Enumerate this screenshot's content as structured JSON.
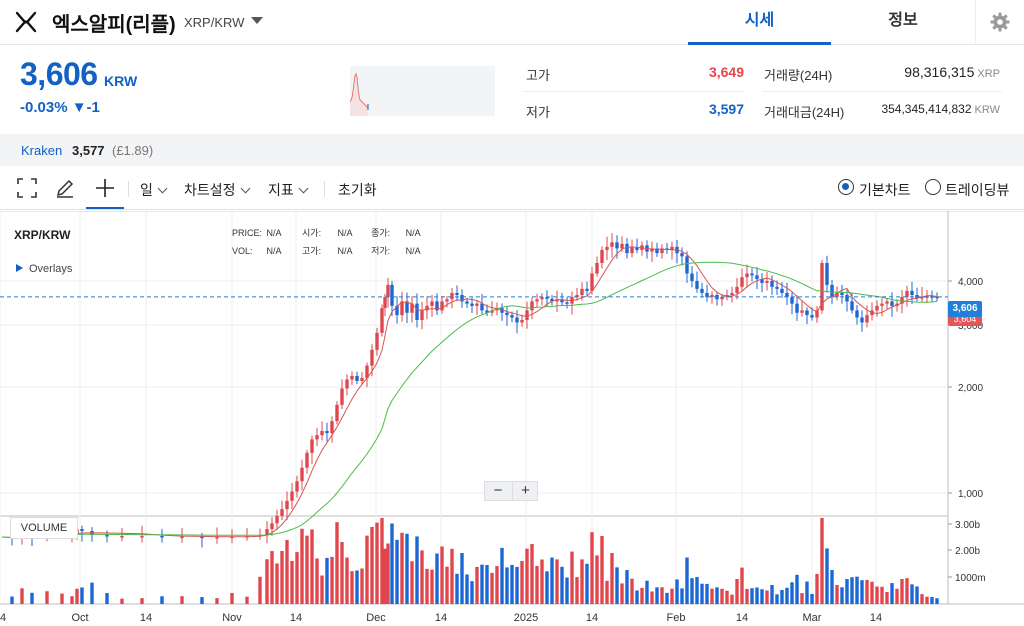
{
  "header": {
    "coin_name": "엑스알피(리플)",
    "pair": "XRP/KRW",
    "tabs": [
      "시세",
      "정보"
    ],
    "active_tab": "시세"
  },
  "price": {
    "current": "3,606",
    "unit": "KRW",
    "change": "-0.03% ▼-1"
  },
  "stats": {
    "high_label": "고가",
    "high_value": "3,649",
    "low_label": "저가",
    "low_value": "3,597",
    "volume_label": "거래량(24H)",
    "volume_value": "98,316,315",
    "volume_unit": "XRP",
    "amount_label": "거래대금(24H)",
    "amount_value": "354,345,414,832",
    "amount_unit": "KRW"
  },
  "exchange": {
    "name": "Kraken",
    "price": "3,577",
    "sub": "(£1.89)"
  },
  "toolbar": {
    "period": "일",
    "chart_settings": "차트설정",
    "indicators": "지표",
    "reset": "초기화",
    "radio_basic": "기본차트",
    "radio_tv": "트레이딩뷰",
    "selected": "기본차트"
  },
  "chart_header": {
    "symbol": "XRP/KRW",
    "overlays": "Overlays",
    "legend": {
      "price_label": "PRICE:",
      "price": "N/A",
      "open_label": "시가:",
      "open": "N/A",
      "close_label": "종가:",
      "close": "N/A",
      "vol_label": "VOL:",
      "vol": "N/A",
      "high_label": "고가:",
      "high": "N/A",
      "low_label": "저가:",
      "low": "N/A"
    },
    "volume_panel_label": "VOLUME",
    "price_tag": "3,606",
    "price_tag2": "3,604"
  },
  "colors": {
    "accent": "#1261c4",
    "up": "#e0474c",
    "down": "#1b67d6",
    "ma_short": "#d9534f",
    "ma_long": "#4cbb4a"
  },
  "chart_data": {
    "type": "candlestick",
    "y_scale": "log",
    "y_ticks": [
      1000,
      2000,
      3000,
      4000
    ],
    "y_tick_labels": [
      "1,000",
      "2,000",
      "3,000",
      "4,000"
    ],
    "vol_ticks": [
      "1000m",
      "2.00b",
      "3.00b"
    ],
    "x_tick_labels": [
      "4",
      "Oct",
      "14",
      "Nov",
      "14",
      "Dec",
      "14",
      "2025",
      "14",
      "Feb",
      "14",
      "Mar",
      "14"
    ],
    "close_points": [
      [
        0,
        750
      ],
      [
        10,
        745
      ],
      [
        20,
        760
      ],
      [
        30,
        755
      ],
      [
        45,
        760
      ],
      [
        60,
        765
      ],
      [
        70,
        770
      ],
      [
        75,
        790
      ],
      [
        80,
        780
      ],
      [
        90,
        760
      ],
      [
        105,
        755
      ],
      [
        120,
        755
      ],
      [
        140,
        755
      ],
      [
        160,
        750
      ],
      [
        180,
        752
      ],
      [
        200,
        750
      ],
      [
        215,
        750
      ],
      [
        230,
        752
      ],
      [
        245,
        755
      ],
      [
        258,
        760
      ],
      [
        265,
        790
      ],
      [
        270,
        820
      ],
      [
        275,
        860
      ],
      [
        280,
        900
      ],
      [
        285,
        950
      ],
      [
        290,
        1010
      ],
      [
        295,
        1080
      ],
      [
        300,
        1180
      ],
      [
        305,
        1300
      ],
      [
        310,
        1420
      ],
      [
        315,
        1460
      ],
      [
        320,
        1500
      ],
      [
        325,
        1480
      ],
      [
        330,
        1600
      ],
      [
        335,
        1780
      ],
      [
        340,
        1980
      ],
      [
        345,
        2100
      ],
      [
        350,
        2150
      ],
      [
        355,
        2080
      ],
      [
        360,
        2120
      ],
      [
        365,
        2300
      ],
      [
        370,
        2550
      ],
      [
        375,
        2850
      ],
      [
        380,
        3350
      ],
      [
        383,
        3600
      ],
      [
        386,
        3900
      ],
      [
        390,
        3400
      ],
      [
        395,
        3200
      ],
      [
        400,
        3500
      ],
      [
        405,
        3250
      ],
      [
        410,
        3450
      ],
      [
        415,
        3100
      ],
      [
        420,
        3300
      ],
      [
        425,
        3400
      ],
      [
        430,
        3500
      ],
      [
        435,
        3300
      ],
      [
        440,
        3500
      ],
      [
        445,
        3550
      ],
      [
        450,
        3700
      ],
      [
        455,
        3650
      ],
      [
        460,
        3500
      ],
      [
        465,
        3450
      ],
      [
        470,
        3400
      ],
      [
        475,
        3450
      ],
      [
        480,
        3300
      ],
      [
        485,
        3250
      ],
      [
        490,
        3300
      ],
      [
        495,
        3350
      ],
      [
        500,
        3250
      ],
      [
        505,
        3200
      ],
      [
        510,
        3150
      ],
      [
        515,
        3050
      ],
      [
        520,
        3100
      ],
      [
        525,
        3300
      ],
      [
        530,
        3500
      ],
      [
        535,
        3550
      ],
      [
        540,
        3600
      ],
      [
        545,
        3560
      ],
      [
        550,
        3500
      ],
      [
        555,
        3550
      ],
      [
        560,
        3480
      ],
      [
        565,
        3450
      ],
      [
        570,
        3600
      ],
      [
        575,
        3650
      ],
      [
        580,
        3800
      ],
      [
        585,
        3750
      ],
      [
        590,
        4200
      ],
      [
        595,
        4500
      ],
      [
        600,
        4900
      ],
      [
        605,
        5000
      ],
      [
        610,
        5150
      ],
      [
        615,
        4950
      ],
      [
        620,
        5100
      ],
      [
        625,
        4800
      ],
      [
        630,
        5000
      ],
      [
        635,
        4900
      ],
      [
        640,
        5050
      ],
      [
        645,
        4850
      ],
      [
        650,
        4950
      ],
      [
        655,
        4800
      ],
      [
        660,
        4950
      ],
      [
        665,
        4900
      ],
      [
        670,
        5000
      ],
      [
        675,
        4800
      ],
      [
        680,
        4700
      ],
      [
        685,
        4200
      ],
      [
        690,
        4000
      ],
      [
        695,
        3800
      ],
      [
        700,
        3700
      ],
      [
        705,
        3600
      ],
      [
        710,
        3650
      ],
      [
        715,
        3550
      ],
      [
        720,
        3600
      ],
      [
        725,
        3650
      ],
      [
        730,
        3700
      ],
      [
        735,
        3850
      ],
      [
        740,
        4100
      ],
      [
        745,
        4200
      ],
      [
        750,
        4150
      ],
      [
        755,
        4050
      ],
      [
        760,
        3950
      ],
      [
        765,
        4000
      ],
      [
        770,
        3850
      ],
      [
        775,
        3800
      ],
      [
        780,
        3700
      ],
      [
        785,
        3600
      ],
      [
        790,
        3450
      ],
      [
        795,
        3250
      ],
      [
        800,
        3300
      ],
      [
        805,
        3200
      ],
      [
        810,
        3150
      ],
      [
        815,
        3300
      ],
      [
        820,
        4500
      ],
      [
        825,
        3900
      ],
      [
        830,
        3600
      ],
      [
        835,
        3700
      ],
      [
        840,
        3650
      ],
      [
        845,
        3500
      ],
      [
        850,
        3300
      ],
      [
        855,
        3150
      ],
      [
        860,
        3050
      ],
      [
        865,
        3200
      ],
      [
        870,
        3300
      ],
      [
        875,
        3400
      ],
      [
        880,
        3450
      ],
      [
        885,
        3500
      ],
      [
        890,
        3400
      ],
      [
        895,
        3450
      ],
      [
        900,
        3600
      ],
      [
        905,
        3750
      ],
      [
        910,
        3650
      ],
      [
        915,
        3580
      ],
      [
        920,
        3600
      ],
      [
        925,
        3620
      ],
      [
        930,
        3610
      ],
      [
        935,
        3606
      ]
    ]
  }
}
